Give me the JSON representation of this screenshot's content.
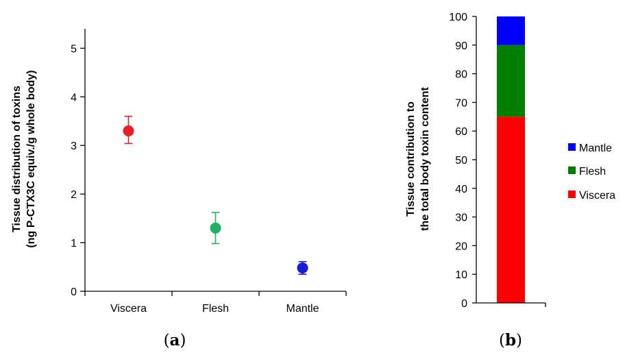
{
  "chart_data": [
    {
      "panel_label": "a",
      "type": "scatter",
      "categories": [
        "Viscera",
        "Flesh",
        "Mantle"
      ],
      "points": [
        {
          "category": "Viscera",
          "value": 3.3,
          "err_low": 3.04,
          "err_high": 3.6
        },
        {
          "category": "Flesh",
          "value": 1.3,
          "err_low": 0.98,
          "err_high": 1.62
        },
        {
          "category": "Mantle",
          "value": 0.48,
          "err_low": 0.35,
          "err_high": 0.61
        }
      ],
      "ylabel_line1": "Tissue distribution of toxins",
      "ylabel_line2": "(ng P-CTX3C equiv./g whole body)",
      "ylim": [
        0,
        5.4
      ],
      "yticks": [
        "0",
        "1",
        "2",
        "3",
        "4",
        "5"
      ],
      "colors": {
        "Viscera": "#ee1c25",
        "Flesh": "#1db360",
        "Mantle": "#1a1adb"
      },
      "grid": false
    },
    {
      "panel_label": "b",
      "type": "bar",
      "stacked": true,
      "categories": [
        ""
      ],
      "series": [
        {
          "name": "Viscera",
          "values": [
            65
          ],
          "color": "#ff0000"
        },
        {
          "name": "Flesh",
          "values": [
            25
          ],
          "color": "#008000"
        },
        {
          "name": "Mantle",
          "values": [
            10
          ],
          "color": "#0000ff"
        }
      ],
      "ylabel_line1": "Tissue  contribution to",
      "ylabel_line2": "the total body toxin content",
      "ylim": [
        0,
        100
      ],
      "yticks": [
        "0",
        "10",
        "20",
        "30",
        "40",
        "50",
        "60",
        "70",
        "80",
        "90",
        "100"
      ],
      "legend_position": "right",
      "legend_order": [
        "Mantle",
        "Flesh",
        "Viscera"
      ],
      "grid": false
    }
  ]
}
